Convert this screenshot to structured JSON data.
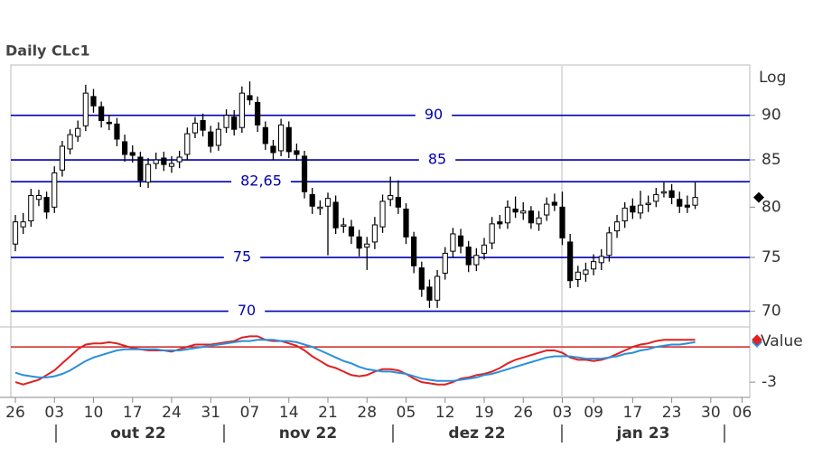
{
  "chart_data": [
    {
      "type": "candlestick",
      "title": "Daily CLc1",
      "scale_label": "Log",
      "log_scale": true,
      "categories": [
        "26",
        null,
        null,
        null,
        null,
        "03",
        null,
        null,
        null,
        null,
        "10",
        null,
        null,
        null,
        null,
        "17",
        null,
        null,
        null,
        null,
        "24",
        null,
        null,
        null,
        null,
        "31",
        null,
        null,
        null,
        null,
        "07",
        null,
        null,
        null,
        null,
        "14",
        null,
        null,
        null,
        null,
        "21",
        null,
        null,
        null,
        null,
        "28",
        null,
        null,
        null,
        null,
        "05",
        null,
        null,
        null,
        null,
        "12",
        null,
        null,
        null,
        null,
        "19",
        null,
        null,
        null,
        null,
        "26",
        null,
        null,
        null,
        null,
        "03",
        null,
        null,
        null,
        "09",
        null,
        null,
        null,
        null,
        "17",
        null,
        null,
        null,
        null,
        "23",
        null,
        null,
        null,
        null,
        "30",
        null,
        null,
        null,
        "06"
      ],
      "months": [
        "out 22",
        "nov 22",
        "dez 22",
        "jan 23"
      ],
      "open": [
        76.3,
        78.0,
        78.6,
        80.8,
        81.0,
        80.0,
        83.9,
        86.2,
        87.6,
        88.8,
        92.2,
        91.0,
        89.2,
        89.0,
        87.0,
        85.8,
        85.3,
        82.6,
        84.6,
        85.2,
        84.3,
        84.8,
        85.6,
        88.0,
        89.4,
        88.1,
        86.6,
        88.6,
        89.8,
        88.6,
        92.3,
        91.5,
        88.6,
        86.5,
        86.0,
        88.6,
        86.0,
        85.4,
        81.3,
        80.0,
        80.1,
        80.5,
        78.1,
        78.0,
        77.0,
        76.0,
        76.5,
        78.0,
        80.8,
        81.0,
        79.8,
        77.0,
        74.0,
        72.2,
        71.0,
        73.5,
        75.6,
        77.1,
        76.0,
        74.3,
        75.4,
        76.4,
        78.5,
        78.4,
        79.8,
        79.4,
        79.6,
        78.3,
        79.2,
        80.5,
        80.0,
        76.5,
        72.9,
        73.4,
        73.9,
        74.5,
        75.2,
        77.6,
        78.6,
        80.1,
        79.4,
        80.3,
        80.6,
        81.5,
        81.7,
        80.8,
        80.2,
        80.2,
        null,
        null,
        null,
        null,
        null,
        null
      ],
      "high": [
        79.2,
        79.4,
        81.9,
        81.8,
        81.6,
        84.3,
        87.1,
        88.4,
        89.4,
        93.6,
        93.1,
        91.6,
        90.0,
        89.7,
        87.8,
        86.6,
        85.9,
        85.2,
        85.8,
        85.9,
        85.4,
        86.0,
        88.6,
        89.8,
        90.2,
        88.8,
        89.2,
        90.7,
        90.6,
        93.4,
        94.0,
        92.2,
        89.3,
        87.2,
        89.6,
        89.3,
        86.8,
        86.0,
        82.0,
        80.7,
        81.5,
        81.2,
        78.9,
        78.7,
        77.7,
        77.0,
        79.0,
        81.3,
        83.2,
        82.8,
        80.4,
        77.5,
        74.6,
        72.9,
        73.8,
        76.0,
        77.9,
        77.8,
        76.6,
        75.9,
        76.9,
        79.0,
        79.2,
        80.7,
        81.1,
        80.5,
        80.1,
        79.6,
        81.0,
        81.4,
        81.6,
        77.3,
        74.2,
        74.5,
        75.3,
        75.8,
        78.0,
        79.2,
        80.5,
        80.9,
        81.7,
        81.2,
        82.0,
        82.6,
        82.4,
        81.6,
        81.2,
        82.6,
        null,
        null,
        null,
        null,
        null,
        null
      ],
      "low": [
        75.6,
        77.3,
        78.0,
        80.1,
        78.8,
        79.4,
        83.2,
        85.6,
        87.0,
        88.2,
        90.3,
        88.6,
        88.3,
        86.5,
        84.8,
        84.7,
        82.1,
        82.0,
        84.0,
        83.8,
        83.6,
        84.1,
        85.0,
        87.4,
        87.6,
        85.8,
        86.0,
        88.0,
        87.7,
        88.0,
        91.2,
        88.1,
        86.1,
        85.0,
        85.4,
        85.2,
        84.9,
        80.9,
        79.3,
        79.2,
        75.2,
        77.3,
        77.4,
        76.3,
        75.1,
        73.8,
        75.8,
        77.4,
        80.1,
        79.3,
        76.3,
        73.5,
        71.3,
        70.3,
        70.3,
        72.9,
        75.0,
        75.4,
        73.6,
        73.7,
        74.8,
        75.8,
        77.8,
        77.8,
        78.9,
        78.7,
        77.8,
        77.6,
        78.6,
        79.6,
        76.2,
        72.1,
        72.2,
        72.7,
        73.3,
        73.8,
        74.6,
        76.9,
        77.9,
        78.8,
        78.8,
        79.5,
        80.0,
        81.0,
        80.3,
        79.4,
        79.4,
        79.8,
        null,
        null,
        null,
        null,
        null,
        null
      ],
      "close": [
        78.5,
        78.5,
        81.2,
        81.2,
        79.5,
        83.6,
        86.5,
        87.8,
        88.5,
        92.6,
        91.1,
        89.4,
        89.1,
        87.3,
        85.6,
        85.5,
        82.8,
        84.5,
        85.0,
        84.5,
        84.6,
        85.3,
        87.9,
        89.1,
        88.3,
        86.5,
        88.4,
        90.0,
        88.4,
        92.6,
        91.8,
        88.9,
        86.8,
        85.8,
        88.9,
        85.9,
        85.6,
        81.6,
        80.1,
        80.0,
        80.9,
        77.9,
        78.2,
        77.1,
        75.9,
        76.3,
        78.2,
        80.6,
        81.2,
        80.0,
        77.0,
        74.2,
        72.0,
        71.0,
        73.2,
        75.4,
        77.3,
        76.1,
        74.3,
        75.2,
        76.2,
        78.3,
        78.3,
        80.0,
        79.5,
        79.6,
        78.4,
        78.9,
        80.3,
        80.2,
        76.9,
        72.8,
        73.6,
        73.8,
        74.6,
        75.1,
        77.4,
        78.5,
        79.9,
        79.5,
        80.2,
        80.4,
        81.3,
        81.6,
        81.0,
        80.1,
        80.0,
        81.0,
        null,
        null,
        null,
        null,
        null,
        null
      ],
      "ylim": [
        68.6,
        96.0
      ],
      "yticks": [
        70,
        75,
        80,
        85,
        90
      ],
      "hlines": [
        {
          "value": 90,
          "label": "90"
        },
        {
          "value": 85,
          "label": "85"
        },
        {
          "value": 82.65,
          "label": "82,65"
        },
        {
          "value": 75,
          "label": "75"
        },
        {
          "value": 70,
          "label": "70"
        }
      ],
      "hline_color": "#0000b0"
    },
    {
      "type": "line",
      "ylabel": "Value",
      "series": [
        {
          "color": "#e02020",
          "values": [
            -3.0,
            -3.2,
            -3.0,
            -2.8,
            -2.4,
            -2.0,
            -1.4,
            -0.8,
            -0.2,
            0.2,
            0.3,
            0.3,
            0.4,
            0.3,
            0.1,
            -0.1,
            -0.2,
            -0.3,
            -0.3,
            -0.3,
            -0.4,
            -0.2,
            0.0,
            0.2,
            0.2,
            0.2,
            0.3,
            0.4,
            0.5,
            0.8,
            0.9,
            0.9,
            0.6,
            0.5,
            0.5,
            0.3,
            0.1,
            -0.3,
            -0.8,
            -1.2,
            -1.6,
            -1.8,
            -2.1,
            -2.4,
            -2.5,
            -2.4,
            -2.1,
            -1.9,
            -1.9,
            -2.0,
            -2.3,
            -2.7,
            -3.0,
            -3.1,
            -3.2,
            -3.2,
            -3.0,
            -2.7,
            -2.6,
            -2.4,
            -2.3,
            -2.1,
            -1.8,
            -1.4,
            -1.1,
            -0.9,
            -0.7,
            -0.5,
            -0.3,
            -0.3,
            -0.5,
            -0.9,
            -1.1,
            -1.1,
            -1.2,
            -1.1,
            -0.9,
            -0.6,
            -0.3,
            0.0,
            0.2,
            0.3,
            0.5,
            0.6,
            0.6,
            0.6,
            0.6,
            0.6,
            null,
            null,
            null,
            null,
            null,
            null
          ]
        },
        {
          "color": "#2a8fdc",
          "values": [
            -2.2,
            -2.4,
            -2.5,
            -2.6,
            -2.6,
            -2.5,
            -2.3,
            -2.0,
            -1.6,
            -1.2,
            -0.9,
            -0.7,
            -0.5,
            -0.3,
            -0.2,
            -0.2,
            -0.2,
            -0.2,
            -0.2,
            -0.3,
            -0.3,
            -0.3,
            -0.2,
            -0.1,
            0.0,
            0.1,
            0.2,
            0.3,
            0.4,
            0.5,
            0.5,
            0.6,
            0.6,
            0.6,
            0.5,
            0.5,
            0.4,
            0.2,
            0.0,
            -0.3,
            -0.6,
            -0.9,
            -1.2,
            -1.4,
            -1.7,
            -1.9,
            -2.0,
            -2.1,
            -2.1,
            -2.2,
            -2.3,
            -2.5,
            -2.7,
            -2.8,
            -2.9,
            -2.9,
            -2.9,
            -2.8,
            -2.7,
            -2.6,
            -2.4,
            -2.3,
            -2.1,
            -1.9,
            -1.7,
            -1.5,
            -1.3,
            -1.1,
            -0.9,
            -0.8,
            -0.8,
            -0.8,
            -0.9,
            -1.0,
            -1.0,
            -1.0,
            -0.9,
            -0.8,
            -0.6,
            -0.5,
            -0.3,
            -0.2,
            0.0,
            0.1,
            0.2,
            0.2,
            0.3,
            0.4,
            null,
            null,
            null,
            null,
            null,
            null
          ]
        }
      ],
      "reference_line": 0,
      "reference_color": "#d02020",
      "ylim": [
        -4.3,
        1.7
      ],
      "yticks": [
        -3
      ]
    }
  ]
}
